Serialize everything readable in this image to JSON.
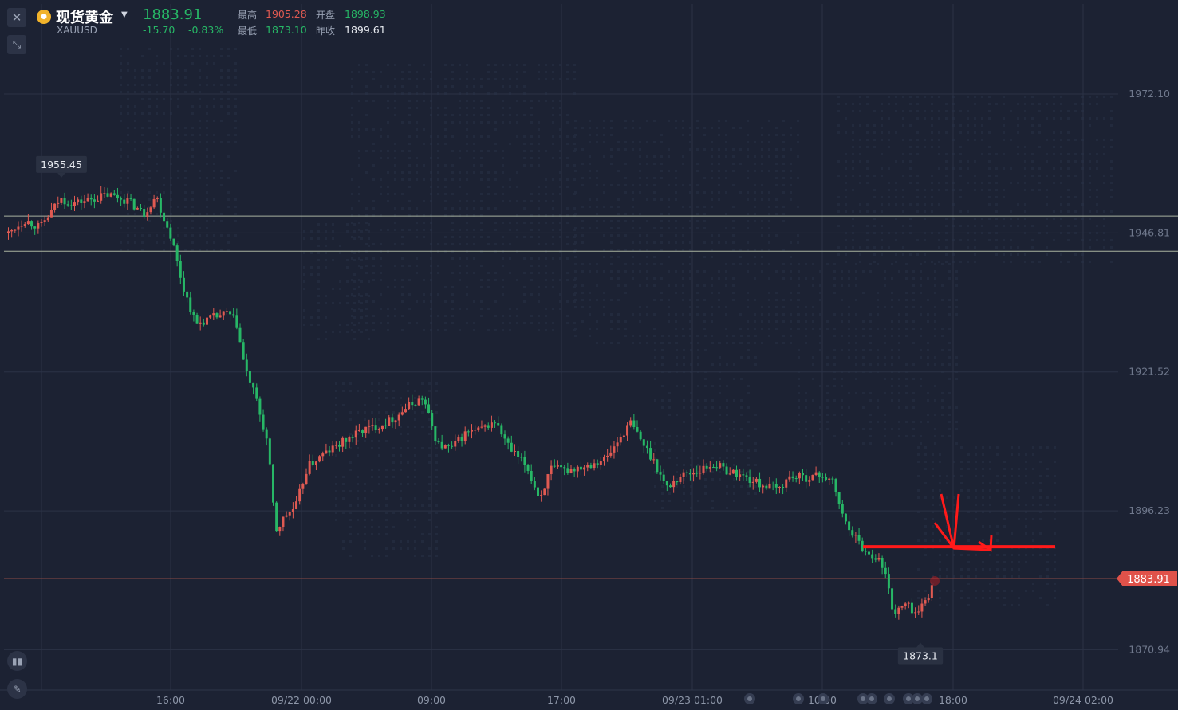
{
  "header": {
    "close_icon": "close-icon",
    "collapse_icon": "collapse-arrows-icon",
    "coin_icon": "gold-coin-icon",
    "name": "现货黄金",
    "symbol": "XAUUSD",
    "last_price": "1883.91",
    "change": "-15.70",
    "change_pct": "-0.83%",
    "high_label": "最高",
    "high_value": "1905.28",
    "open_label": "开盘",
    "open_value": "1898.93",
    "low_label": "最低",
    "low_value": "1873.10",
    "prev_close_label": "昨收",
    "prev_close_value": "1899.61"
  },
  "colors": {
    "background": "#1c2233",
    "up": "#e05a52",
    "down": "#27b766",
    "price_tag": "#e0524a",
    "annotation": "#ff1a1a",
    "grid": "#2b3246"
  },
  "sidebar": {
    "tools": [
      "candlestick-type-icon",
      "pencil-draw-icon"
    ]
  },
  "chart_data": {
    "type": "candlestick",
    "symbol": "XAUUSD",
    "y_ticks": [
      1972.1,
      1946.81,
      1921.52,
      1896.23,
      1870.94
    ],
    "y_tick_labels": [
      "1972.10",
      "1946.81",
      "1921.52",
      "1896.23",
      "1870.94"
    ],
    "ylim": [
      1863.6,
      1988.5
    ],
    "x_tick_labels": [
      "16:00",
      "09/22 00:00",
      "09:00",
      "17:00",
      "09/23 01:00",
      "10:00",
      "18:00",
      "09/24 02:00"
    ],
    "current_price": 1883.91,
    "current_price_label": "1883.91",
    "high_marker": {
      "value": 1955.45,
      "label": "1955.45"
    },
    "low_marker": {
      "value": 1873.1,
      "label": "1873.1"
    },
    "horizontal_lines": [
      1949.9,
      1943.5
    ],
    "annotation": {
      "level": 1889.7,
      "style": "red resistance line with up-then-down arrows"
    },
    "grid": true,
    "path": [
      [
        0,
        1945.5
      ],
      [
        30,
        1949.2
      ],
      [
        50,
        1947.8
      ],
      [
        75,
        1953
      ],
      [
        90,
        1952.2
      ],
      [
        110,
        1952.8
      ],
      [
        135,
        1953.8
      ],
      [
        160,
        1952.7
      ],
      [
        180,
        1950.3
      ],
      [
        195,
        1953.6
      ],
      [
        205,
        1949.5
      ],
      [
        215,
        1945.8
      ],
      [
        228,
        1937.5
      ],
      [
        245,
        1930.2
      ],
      [
        262,
        1931.2
      ],
      [
        285,
        1932.2
      ],
      [
        296,
        1930.5
      ],
      [
        306,
        1922.5
      ],
      [
        320,
        1916.8
      ],
      [
        335,
        1908.5
      ],
      [
        345,
        1892.5
      ],
      [
        358,
        1895.5
      ],
      [
        370,
        1896.8
      ],
      [
        385,
        1904.3
      ],
      [
        405,
        1906.5
      ],
      [
        430,
        1908.8
      ],
      [
        455,
        1911
      ],
      [
        475,
        1911.8
      ],
      [
        495,
        1913.2
      ],
      [
        510,
        1915.2
      ],
      [
        530,
        1916.8
      ],
      [
        548,
        1908.3
      ],
      [
        565,
        1907.5
      ],
      [
        585,
        1910.6
      ],
      [
        600,
        1910.8
      ],
      [
        620,
        1912.5
      ],
      [
        640,
        1907.2
      ],
      [
        660,
        1904.3
      ],
      [
        676,
        1898.4
      ],
      [
        690,
        1903.8
      ],
      [
        710,
        1903.6
      ],
      [
        735,
        1904.6
      ],
      [
        760,
        1905.8
      ],
      [
        790,
        1912.3
      ],
      [
        805,
        1908.6
      ],
      [
        820,
        1905.2
      ],
      [
        835,
        1900.4
      ],
      [
        855,
        1902.8
      ],
      [
        875,
        1903.5
      ],
      [
        895,
        1904.8
      ],
      [
        910,
        1903.6
      ],
      [
        930,
        1902.6
      ],
      [
        950,
        1901.2
      ],
      [
        975,
        1900.1
      ],
      [
        990,
        1902.5
      ],
      [
        1010,
        1902.3
      ],
      [
        1030,
        1902.8
      ],
      [
        1045,
        1901.2
      ],
      [
        1055,
        1895.5
      ],
      [
        1072,
        1891.5
      ],
      [
        1085,
        1888.6
      ],
      [
        1100,
        1887.8
      ],
      [
        1110,
        1884.5
      ],
      [
        1120,
        1877.5
      ],
      [
        1135,
        1879.3
      ],
      [
        1150,
        1877.4
      ],
      [
        1162,
        1880.8
      ],
      [
        1170,
        1882.5
      ]
    ]
  }
}
